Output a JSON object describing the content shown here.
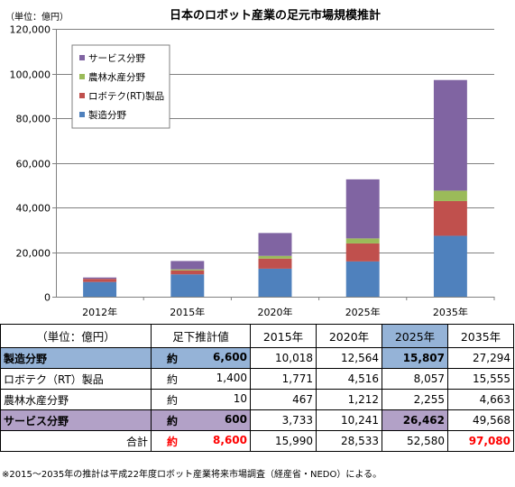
{
  "chart_data": {
    "type": "bar",
    "stacked": true,
    "title": "日本のロボット産業の足元市場規模推計",
    "unit_label": "（単位：億円）",
    "categories": [
      "2012年",
      "2015年",
      "2020年",
      "2025年",
      "2035年"
    ],
    "ylim": [
      0,
      120000
    ],
    "yticks": [
      "0",
      "20,000",
      "40,000",
      "60,000",
      "80,000",
      "100,000",
      "120,000"
    ],
    "ytick_values": [
      0,
      20000,
      40000,
      60000,
      80000,
      100000,
      120000
    ],
    "grid": true,
    "legend_placement": "top-left",
    "series": [
      {
        "name": "製造分野",
        "color": "#4f81bd",
        "values": [
          6600,
          10018,
          12564,
          15807,
          27294
        ]
      },
      {
        "name": "ロボテク(RT)製品",
        "color": "#c0504d",
        "values": [
          1400,
          1771,
          4516,
          8057,
          15555
        ]
      },
      {
        "name": "農林水産分野",
        "color": "#9bbb59",
        "values": [
          10,
          467,
          1212,
          2255,
          4663
        ]
      },
      {
        "name": "サービス分野",
        "color": "#8064a2",
        "values": [
          600,
          3733,
          10241,
          26462,
          49568
        ]
      }
    ],
    "legend_order": [
      3,
      2,
      1,
      0
    ]
  },
  "table": {
    "headers": [
      "（単位：億円）",
      "足下推計値",
      "2015年",
      "2020年",
      "2025年",
      "2035年"
    ],
    "rows": [
      {
        "label": "製造分野",
        "prefix": "約",
        "current": "6,600",
        "values": [
          "10,018",
          "12,564",
          "15,807",
          "27,294"
        ]
      },
      {
        "label": "ロボテク（RT）製品",
        "prefix": "約",
        "current": "1,400",
        "values": [
          "1,771",
          "4,516",
          "8,057",
          "15,555"
        ]
      },
      {
        "label": "農林水産分野",
        "prefix": "約",
        "current": "10",
        "values": [
          "467",
          "1,212",
          "2,255",
          "4,663"
        ]
      },
      {
        "label": "サービス分野",
        "prefix": "約",
        "current": "600",
        "values": [
          "3,733",
          "10,241",
          "26,462",
          "49,568"
        ]
      },
      {
        "label": "合計",
        "prefix": "約",
        "current": "8,600",
        "values": [
          "15,990",
          "28,533",
          "52,580",
          "97,080"
        ]
      }
    ]
  },
  "footnote": "※2015～2035年の推計は平成22年度ロボット産業将来市場調査（経産省・NEDO）による。"
}
